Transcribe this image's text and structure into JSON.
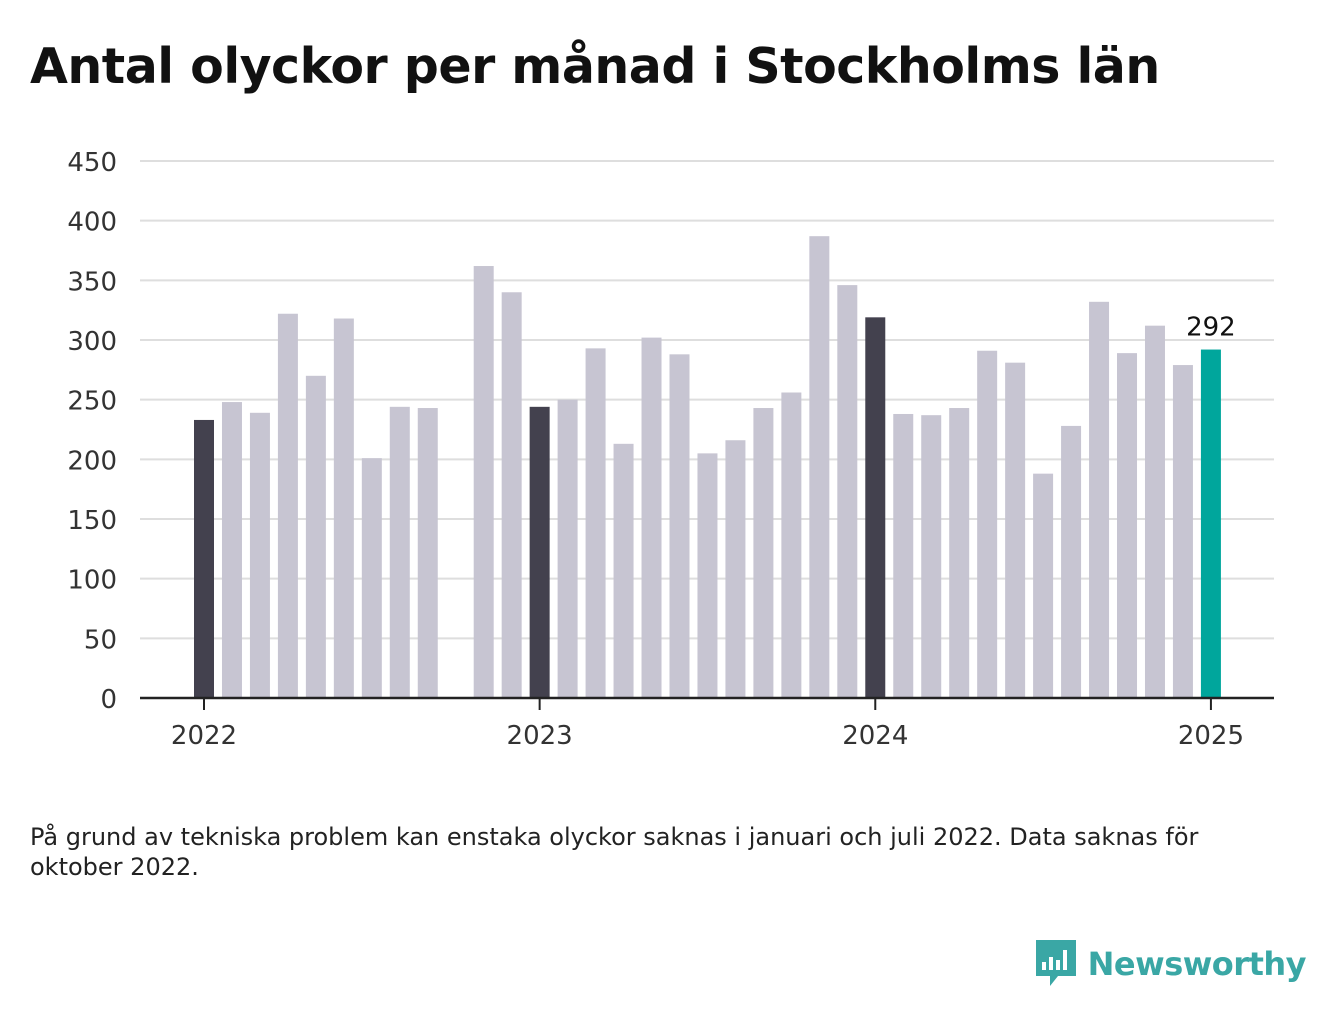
{
  "title": "Antal olyckor per månad i Stockholms län",
  "note": "På grund av tekniska problem kan enstaka olyckor saknas i januari och juli 2022. Data saknas för oktober 2022.",
  "brand": "Newsworthy",
  "colors": {
    "bar": "#c7c5d2",
    "january_bar": "#43414e",
    "latest_bar": "#00a69c",
    "grid": "#dedede",
    "axis": "#222222",
    "brand": "#3aa7a5"
  },
  "chart_data": {
    "type": "bar",
    "title": "Antal olyckor per månad i Stockholms län",
    "xlabel": "",
    "ylabel": "",
    "ylim": [
      0,
      450
    ],
    "yticks": [
      0,
      50,
      100,
      150,
      200,
      250,
      300,
      350,
      400,
      450
    ],
    "xtick_labels": [
      "2022",
      "2023",
      "2024",
      "2025"
    ],
    "grid": true,
    "bar_label": "292",
    "months": [
      "2022-01",
      "2022-02",
      "2022-03",
      "2022-04",
      "2022-05",
      "2022-06",
      "2022-07",
      "2022-08",
      "2022-09",
      "2022-10",
      "2022-11",
      "2022-12",
      "2023-01",
      "2023-02",
      "2023-03",
      "2023-04",
      "2023-05",
      "2023-06",
      "2023-07",
      "2023-08",
      "2023-09",
      "2023-10",
      "2023-11",
      "2023-12",
      "2024-01",
      "2024-02",
      "2024-03",
      "2024-04",
      "2024-05",
      "2024-06",
      "2024-07",
      "2024-08",
      "2024-09",
      "2024-10",
      "2024-11",
      "2024-12",
      "2025-01"
    ],
    "values": [
      233,
      248,
      239,
      322,
      270,
      318,
      201,
      244,
      243,
      null,
      362,
      340,
      244,
      250,
      293,
      213,
      302,
      288,
      205,
      216,
      243,
      256,
      387,
      346,
      319,
      238,
      237,
      243,
      291,
      281,
      188,
      228,
      332,
      289,
      312,
      279,
      292
    ]
  }
}
